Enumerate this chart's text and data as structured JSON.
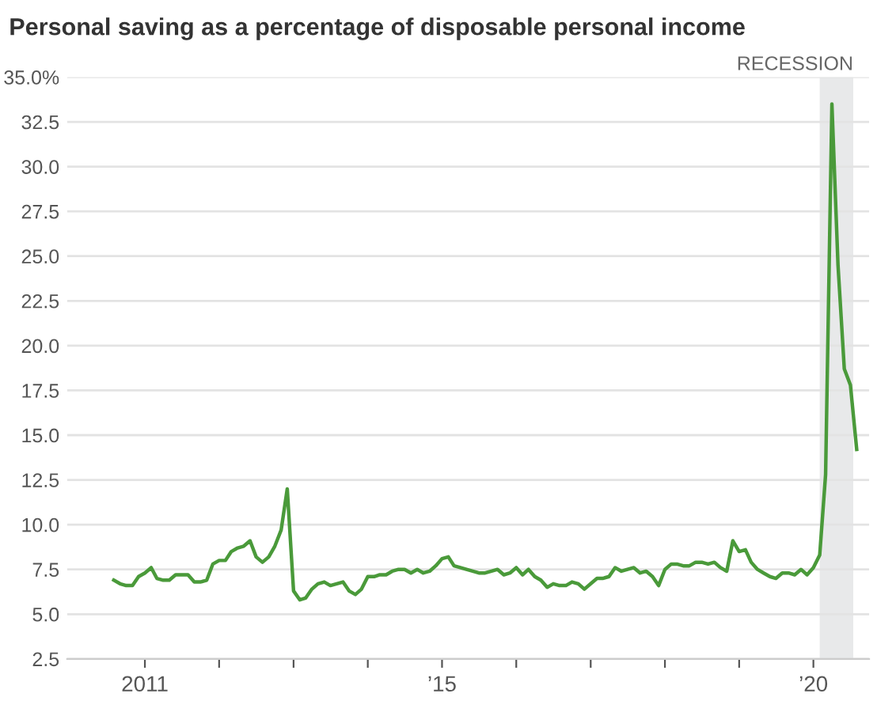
{
  "chart_data": {
    "type": "line",
    "title": "Personal saving as a percentage of disposable personal income",
    "x": [
      "2010-08",
      "2010-09",
      "2010-10",
      "2010-11",
      "2010-12",
      "2011-01",
      "2011-02",
      "2011-03",
      "2011-04",
      "2011-05",
      "2011-06",
      "2011-07",
      "2011-08",
      "2011-09",
      "2011-10",
      "2011-11",
      "2011-12",
      "2012-01",
      "2012-02",
      "2012-03",
      "2012-04",
      "2012-05",
      "2012-06",
      "2012-07",
      "2012-08",
      "2012-09",
      "2012-10",
      "2012-11",
      "2012-12",
      "2013-01",
      "2013-02",
      "2013-03",
      "2013-04",
      "2013-05",
      "2013-06",
      "2013-07",
      "2013-08",
      "2013-09",
      "2013-10",
      "2013-11",
      "2013-12",
      "2014-01",
      "2014-02",
      "2014-03",
      "2014-04",
      "2014-05",
      "2014-06",
      "2014-07",
      "2014-08",
      "2014-09",
      "2014-10",
      "2014-11",
      "2014-12",
      "2015-01",
      "2015-02",
      "2015-03",
      "2015-04",
      "2015-05",
      "2015-06",
      "2015-07",
      "2015-08",
      "2015-09",
      "2015-10",
      "2015-11",
      "2015-12",
      "2016-01",
      "2016-02",
      "2016-03",
      "2016-04",
      "2016-05",
      "2016-06",
      "2016-07",
      "2016-08",
      "2016-09",
      "2016-10",
      "2016-11",
      "2016-12",
      "2017-01",
      "2017-02",
      "2017-03",
      "2017-04",
      "2017-05",
      "2017-06",
      "2017-07",
      "2017-08",
      "2017-09",
      "2017-10",
      "2017-11",
      "2017-12",
      "2018-01",
      "2018-02",
      "2018-03",
      "2018-04",
      "2018-05",
      "2018-06",
      "2018-07",
      "2018-08",
      "2018-09",
      "2018-10",
      "2018-11",
      "2018-12",
      "2019-01",
      "2019-02",
      "2019-03",
      "2019-04",
      "2019-05",
      "2019-06",
      "2019-07",
      "2019-08",
      "2019-09",
      "2019-10",
      "2019-11",
      "2019-12",
      "2020-01",
      "2020-02",
      "2020-03",
      "2020-04",
      "2020-05",
      "2020-06",
      "2020-07",
      "2020-08"
    ],
    "series": [
      {
        "color": "#4a9a3a",
        "values": [
          6.9,
          6.7,
          6.6,
          6.6,
          7.1,
          7.3,
          7.6,
          7.0,
          6.9,
          6.9,
          7.2,
          7.2,
          7.2,
          6.8,
          6.8,
          6.9,
          7.8,
          8.0,
          8.0,
          8.5,
          8.7,
          8.8,
          9.1,
          8.2,
          7.9,
          8.2,
          8.8,
          9.7,
          12.0,
          6.3,
          5.8,
          5.9,
          6.4,
          6.7,
          6.8,
          6.6,
          6.7,
          6.8,
          6.3,
          6.1,
          6.4,
          7.1,
          7.1,
          7.2,
          7.2,
          7.4,
          7.5,
          7.5,
          7.3,
          7.5,
          7.3,
          7.4,
          7.7,
          8.1,
          8.2,
          7.7,
          7.6,
          7.5,
          7.4,
          7.3,
          7.3,
          7.4,
          7.5,
          7.2,
          7.3,
          7.6,
          7.2,
          7.5,
          7.1,
          6.9,
          6.5,
          6.7,
          6.6,
          6.6,
          6.8,
          6.7,
          6.4,
          6.7,
          7.0,
          7.0,
          7.1,
          7.6,
          7.4,
          7.5,
          7.6,
          7.3,
          7.4,
          7.1,
          6.6,
          7.5,
          7.8,
          7.8,
          7.7,
          7.7,
          7.9,
          7.9,
          7.8,
          7.9,
          7.6,
          7.4,
          9.1,
          8.5,
          8.6,
          7.9,
          7.5,
          7.3,
          7.1,
          7.0,
          7.3,
          7.3,
          7.2,
          7.5,
          7.2,
          7.6,
          8.3,
          12.8,
          33.5,
          24.5,
          18.7,
          17.8,
          14.2
        ]
      }
    ],
    "xlim": [
      "2009-12-15",
      "2020-10-01"
    ],
    "xticks": [
      {
        "value": "2011-01",
        "label": "2011"
      },
      {
        "value": "2012-01",
        "label": null
      },
      {
        "value": "2013-01",
        "label": null
      },
      {
        "value": "2014-01",
        "label": null
      },
      {
        "value": "2015-01",
        "label": "’15"
      },
      {
        "value": "2016-01",
        "label": null
      },
      {
        "value": "2017-01",
        "label": null
      },
      {
        "value": "2018-01",
        "label": null
      },
      {
        "value": "2019-01",
        "label": null
      },
      {
        "value": "2020-01",
        "label": "’20"
      }
    ],
    "ylim": [
      2.5,
      35
    ],
    "yticks": [
      2.5,
      {
        "value": 5,
        "label": "5.0"
      },
      7.5,
      {
        "value": 10,
        "label": "10.0"
      },
      12.5,
      {
        "value": 15,
        "label": "15.0"
      },
      17.5,
      {
        "value": 20,
        "label": "20.0"
      },
      22.5,
      {
        "value": 25,
        "label": "25.0"
      },
      27.5,
      {
        "value": 30,
        "label": "30.0"
      },
      32.5,
      {
        "value": 35,
        "label": "35.0%"
      }
    ],
    "grid": "y",
    "bands": [
      {
        "axis": "x",
        "from": "2020-02",
        "to": "2020-07-15",
        "label": "RECESSION",
        "color": "#e8e9ea"
      }
    ]
  }
}
